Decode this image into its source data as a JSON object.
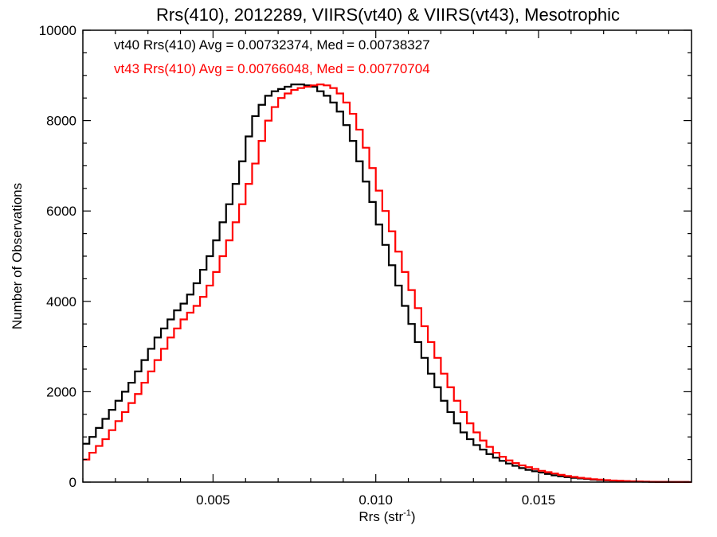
{
  "chart_data": {
    "type": "line",
    "title": "Rrs(410), 2012289, VIIRS(vt40) & VIIRS(vt43), Mesotrophic",
    "xlabel": "Rrs (str",
    "xlabel_sup": "-1",
    "xlabel_end": ")",
    "ylabel": "Number of Observations",
    "xlim": [
      0.001,
      0.0197
    ],
    "ylim": [
      0,
      10000
    ],
    "xticks": [
      0.005,
      0.01,
      0.015
    ],
    "xtick_labels": [
      "0.005",
      "0.010",
      "0.015"
    ],
    "yticks": [
      0,
      2000,
      4000,
      6000,
      8000,
      10000
    ],
    "ytick_labels": [
      "0",
      "2000",
      "4000",
      "6000",
      "8000",
      "10000"
    ],
    "grid": false,
    "legend_placement": "top-left",
    "series": [
      {
        "name": "vt40",
        "legend": "vt40 Rrs(410) Avg = 0.00732374, Med = 0.00738327",
        "color": "#000000",
        "x": [
          0.001,
          0.0012,
          0.0014,
          0.0016,
          0.0018,
          0.002,
          0.0022,
          0.0024,
          0.0026,
          0.0028,
          0.003,
          0.0032,
          0.0034,
          0.0036,
          0.0038,
          0.004,
          0.0042,
          0.0044,
          0.0046,
          0.0048,
          0.005,
          0.0052,
          0.0054,
          0.0056,
          0.0058,
          0.006,
          0.0062,
          0.0064,
          0.0066,
          0.0068,
          0.007,
          0.0072,
          0.0074,
          0.0076,
          0.0078,
          0.008,
          0.0082,
          0.0084,
          0.0086,
          0.0088,
          0.009,
          0.0092,
          0.0094,
          0.0096,
          0.0098,
          0.01,
          0.0102,
          0.0104,
          0.0106,
          0.0108,
          0.011,
          0.0112,
          0.0114,
          0.0116,
          0.0118,
          0.012,
          0.0122,
          0.0124,
          0.0126,
          0.0128,
          0.013,
          0.0132,
          0.0134,
          0.0136,
          0.0138,
          0.014,
          0.0142,
          0.0144,
          0.0146,
          0.0148,
          0.015,
          0.0152,
          0.0154,
          0.0156,
          0.0158,
          0.016,
          0.0162,
          0.0164,
          0.0166,
          0.0168,
          0.017,
          0.0172,
          0.0174,
          0.0176,
          0.0178,
          0.018,
          0.0182,
          0.0184,
          0.0186,
          0.0188,
          0.019,
          0.0192,
          0.0194,
          0.0196
        ],
        "values": [
          850,
          1000,
          1200,
          1400,
          1600,
          1800,
          2000,
          2200,
          2450,
          2700,
          2950,
          3200,
          3400,
          3600,
          3800,
          3950,
          4150,
          4400,
          4700,
          5000,
          5350,
          5750,
          6150,
          6600,
          7100,
          7650,
          8100,
          8350,
          8550,
          8650,
          8700,
          8750,
          8800,
          8800,
          8780,
          8750,
          8650,
          8550,
          8400,
          8200,
          7900,
          7550,
          7100,
          6650,
          6200,
          5700,
          5250,
          4800,
          4350,
          3900,
          3500,
          3100,
          2750,
          2400,
          2100,
          1800,
          1550,
          1300,
          1100,
          950,
          820,
          720,
          620,
          540,
          470,
          410,
          360,
          310,
          270,
          240,
          210,
          180,
          150,
          130,
          110,
          95,
          80,
          70,
          55,
          45,
          40,
          32,
          26,
          20,
          16,
          12,
          9,
          7,
          5,
          4,
          3,
          2,
          2,
          1
        ]
      },
      {
        "name": "vt43",
        "legend": "vt43 Rrs(410) Avg = 0.00766048, Med = 0.00770704",
        "color": "#ff0000",
        "x": [
          0.001,
          0.0012,
          0.0014,
          0.0016,
          0.0018,
          0.002,
          0.0022,
          0.0024,
          0.0026,
          0.0028,
          0.003,
          0.0032,
          0.0034,
          0.0036,
          0.0038,
          0.004,
          0.0042,
          0.0044,
          0.0046,
          0.0048,
          0.005,
          0.0052,
          0.0054,
          0.0056,
          0.0058,
          0.006,
          0.0062,
          0.0064,
          0.0066,
          0.0068,
          0.007,
          0.0072,
          0.0074,
          0.0076,
          0.0078,
          0.008,
          0.0082,
          0.0084,
          0.0086,
          0.0088,
          0.009,
          0.0092,
          0.0094,
          0.0096,
          0.0098,
          0.01,
          0.0102,
          0.0104,
          0.0106,
          0.0108,
          0.011,
          0.0112,
          0.0114,
          0.0116,
          0.0118,
          0.012,
          0.0122,
          0.0124,
          0.0126,
          0.0128,
          0.013,
          0.0132,
          0.0134,
          0.0136,
          0.0138,
          0.014,
          0.0142,
          0.0144,
          0.0146,
          0.0148,
          0.015,
          0.0152,
          0.0154,
          0.0156,
          0.0158,
          0.016,
          0.0162,
          0.0164,
          0.0166,
          0.0168,
          0.017,
          0.0172,
          0.0174,
          0.0176,
          0.0178,
          0.018,
          0.0182,
          0.0184,
          0.0186,
          0.0188,
          0.019,
          0.0192,
          0.0194,
          0.0196
        ],
        "values": [
          500,
          650,
          800,
          950,
          1150,
          1350,
          1550,
          1750,
          1950,
          2200,
          2450,
          2700,
          2950,
          3200,
          3400,
          3600,
          3750,
          3900,
          4100,
          4350,
          4650,
          5000,
          5350,
          5750,
          6150,
          6600,
          7050,
          7550,
          8000,
          8300,
          8500,
          8600,
          8680,
          8720,
          8750,
          8780,
          8800,
          8780,
          8720,
          8600,
          8400,
          8150,
          7800,
          7400,
          6950,
          6450,
          6000,
          5550,
          5100,
          4650,
          4250,
          3850,
          3450,
          3100,
          2750,
          2400,
          2100,
          1800,
          1550,
          1300,
          1100,
          920,
          780,
          650,
          560,
          480,
          420,
          370,
          330,
          290,
          250,
          220,
          190,
          160,
          135,
          115,
          95,
          80,
          65,
          55,
          45,
          36,
          28,
          22,
          17,
          13,
          10,
          7,
          5,
          4,
          3,
          2,
          2,
          1
        ]
      }
    ]
  }
}
